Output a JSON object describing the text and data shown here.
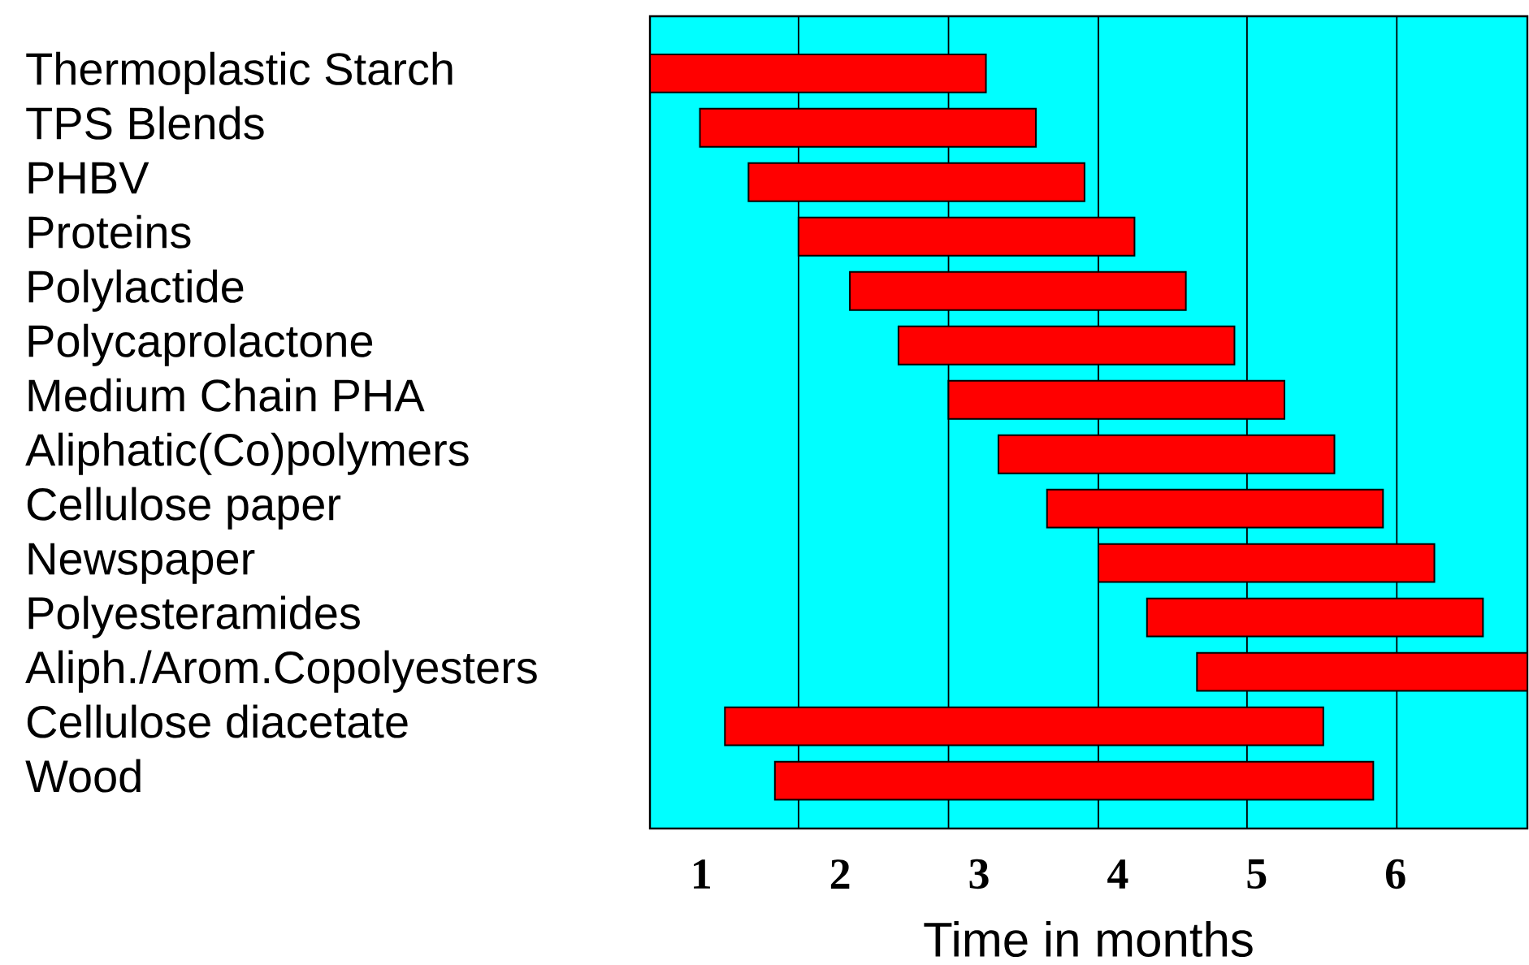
{
  "chart_data": {
    "type": "bar",
    "orientation": "horizontal",
    "xlabel": "Time in months",
    "categories": [
      "Thermoplastic Starch",
      "TPS Blends",
      "PHBV",
      "Proteins",
      "Polylactide",
      "Polycaprolactone",
      "Medium Chain PHA",
      "Aliphatic(Co)polymers",
      "Cellulose paper",
      "Newspaper",
      "Polyesteramides",
      "Aliph./Arom.Copolyesters",
      "Cellulose diacetate",
      "Wood"
    ],
    "base": [
      0.63,
      0.99,
      1.34,
      1.7,
      2.07,
      2.42,
      2.78,
      3.14,
      3.49,
      3.86,
      4.21,
      4.57,
      1.17,
      1.53
    ],
    "values": [
      2.42,
      2.42,
      2.42,
      2.42,
      2.42,
      2.42,
      2.42,
      2.42,
      2.42,
      2.42,
      2.42,
      2.38,
      4.31,
      4.31
    ],
    "color": "#ff0000",
    "xlim": [
      0.63,
      6.95
    ],
    "xticks": [
      1,
      2,
      3,
      4,
      5,
      6
    ],
    "ref_lines": [
      {
        "axis": "x",
        "value": 1.7,
        "color": "#000000"
      },
      {
        "axis": "x",
        "value": 2.78,
        "color": "#000000"
      },
      {
        "axis": "x",
        "value": 3.86,
        "color": "#000000"
      },
      {
        "axis": "x",
        "value": 4.93,
        "color": "#000000"
      },
      {
        "axis": "x",
        "value": 6.01,
        "color": "#000000"
      }
    ]
  }
}
